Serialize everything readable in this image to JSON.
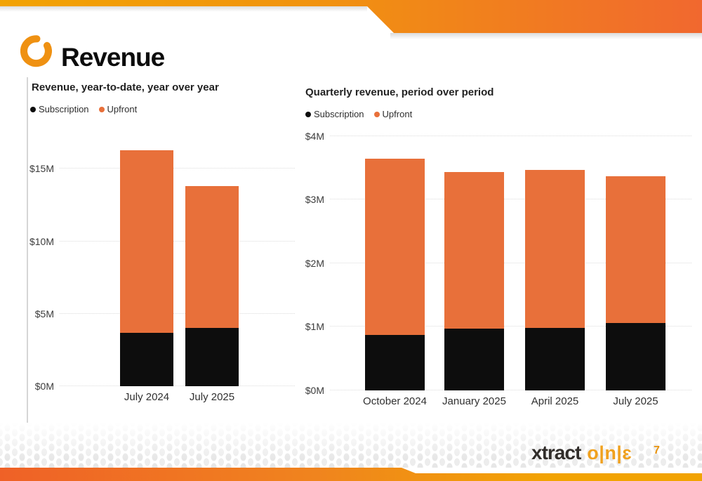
{
  "page": {
    "title": "Revenue",
    "page_number": "7"
  },
  "footer": {
    "brand_word": "xtract",
    "brand_mark": "o|n|ɛ"
  },
  "colors": {
    "accent_amber": "#F2A303",
    "accent_orange": "#F1682F",
    "bar_orange": "#E8703A",
    "bar_black": "#0D0D0D",
    "arc_logo_orange": "#EF9112"
  },
  "chart_data": [
    {
      "type": "bar",
      "stacked": true,
      "title": "Revenue, year-to-date, year over year",
      "categories": [
        "July 2024",
        "July 2025"
      ],
      "series": [
        {
          "name": "Subscription",
          "color": "#0d0d0d",
          "values": [
            3.7,
            4.0
          ]
        },
        {
          "name": "Upfront",
          "color": "#e8703a",
          "values": [
            12.6,
            9.8
          ]
        }
      ],
      "totals": [
        16.3,
        13.8
      ],
      "units": "USD millions",
      "ytick_labels": [
        "$0M",
        "$5M",
        "$10M",
        "$15M"
      ],
      "ytick_values": [
        0,
        5,
        10,
        15
      ],
      "ylim": [
        0,
        17.2
      ],
      "grid": "dotted horizontal",
      "legend_position": "top-left"
    },
    {
      "type": "bar",
      "stacked": true,
      "title": "Quarterly revenue, period over period",
      "categories": [
        "October 2024",
        "January 2025",
        "April 2025",
        "July 2025"
      ],
      "series": [
        {
          "name": "Subscription",
          "color": "#0d0d0d",
          "values": [
            0.87,
            0.97,
            0.98,
            1.06
          ]
        },
        {
          "name": "Upfront",
          "color": "#e8703a",
          "values": [
            2.78,
            2.47,
            2.49,
            2.31
          ]
        }
      ],
      "totals": [
        3.65,
        3.44,
        3.47,
        3.37
      ],
      "units": "USD millions",
      "ytick_labels": [
        "$0M",
        "$1M",
        "$2M",
        "$3M",
        "$4M"
      ],
      "ytick_values": [
        0,
        1,
        2,
        3,
        4
      ],
      "ylim": [
        0,
        4.02
      ],
      "grid": "dotted horizontal",
      "legend_position": "top-left"
    }
  ]
}
